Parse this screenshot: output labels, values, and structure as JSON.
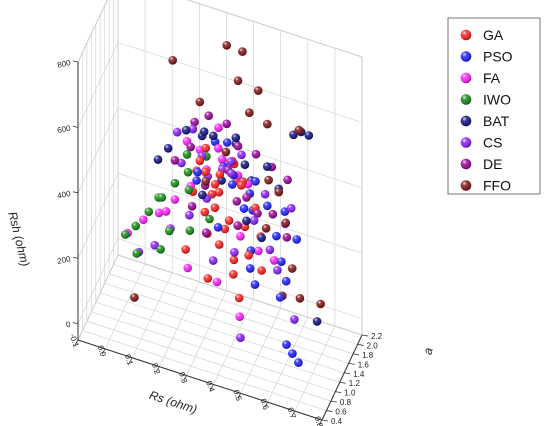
{
  "chart_data": {
    "type": "scatter",
    "projection": "3d",
    "xlabel": "Rs (ohm)",
    "ylabel": "a",
    "zlabel": "Rsh (ohm)",
    "xlim": [
      -0.1,
      0.8
    ],
    "ylim": [
      0.4,
      2.2
    ],
    "zlim": [
      -50,
      800
    ],
    "x_ticks": [
      "-0.1",
      "0.0",
      "0.1",
      "0.2",
      "0.3",
      "0.4",
      "0.5",
      "0.6",
      "0.7",
      "0.8"
    ],
    "y_ticks": [
      "0.4",
      "0.6",
      "0.8",
      "1.0",
      "1.2",
      "1.4",
      "1.6",
      "1.8",
      "2.0",
      "2.2"
    ],
    "z_ticks": [
      "0",
      "200",
      "400",
      "600",
      "800"
    ],
    "legend_position": "top-right",
    "series": [
      {
        "name": "GA",
        "color": "#ff1a1a",
        "points": [
          [
            0.3,
            1.0,
            520
          ],
          [
            0.28,
            1.1,
            470
          ],
          [
            0.34,
            1.2,
            430
          ],
          [
            0.36,
            0.95,
            400
          ],
          [
            0.32,
            1.3,
            380
          ],
          [
            0.4,
            1.1,
            350
          ],
          [
            0.38,
            0.9,
            300
          ],
          [
            0.42,
            1.4,
            420
          ],
          [
            0.3,
            1.25,
            450
          ],
          [
            0.45,
            1.2,
            330
          ],
          [
            0.26,
            0.85,
            260
          ],
          [
            0.48,
            1.0,
            280
          ],
          [
            0.33,
            1.5,
            360
          ],
          [
            0.37,
            1.05,
            490
          ],
          [
            0.44,
            0.8,
            240
          ],
          [
            0.29,
            1.35,
            310
          ],
          [
            0.5,
            1.3,
            300
          ],
          [
            0.41,
            1.6,
            400
          ],
          [
            0.35,
            0.75,
            210
          ],
          [
            0.39,
            1.45,
            470
          ],
          [
            0.31,
            1.15,
            540
          ],
          [
            0.43,
            0.95,
            260
          ],
          [
            0.27,
            1.05,
            410
          ],
          [
            0.46,
            1.55,
            340
          ],
          [
            0.36,
            1.4,
            270
          ],
          [
            0.52,
            1.1,
            230
          ],
          [
            0.34,
            0.85,
            330
          ],
          [
            0.4,
            1.25,
            510
          ],
          [
            0.47,
            0.7,
            190
          ],
          [
            0.38,
            1.7,
            380
          ]
        ]
      },
      {
        "name": "PSO",
        "color": "#1a1aff",
        "points": [
          [
            0.65,
            0.9,
            40
          ],
          [
            0.68,
            0.8,
            35
          ],
          [
            0.62,
            1.0,
            45
          ],
          [
            0.58,
            1.2,
            150
          ],
          [
            0.55,
            1.4,
            300
          ],
          [
            0.5,
            1.6,
            350
          ],
          [
            0.46,
            1.3,
            420
          ],
          [
            0.42,
            1.0,
            480
          ],
          [
            0.36,
            1.5,
            520
          ],
          [
            0.3,
            0.9,
            500
          ],
          [
            0.6,
            1.7,
            260
          ],
          [
            0.52,
            0.8,
            230
          ],
          [
            0.44,
            1.8,
            380
          ],
          [
            0.48,
            1.1,
            280
          ],
          [
            0.4,
            1.3,
            460
          ],
          [
            0.34,
            1.2,
            560
          ],
          [
            0.56,
            1.5,
            210
          ],
          [
            0.38,
            0.85,
            360
          ],
          [
            0.54,
            1.9,
            300
          ],
          [
            0.28,
            1.1,
            440
          ],
          [
            0.45,
            1.55,
            330
          ],
          [
            0.59,
            1.35,
            180
          ],
          [
            0.33,
            1.7,
            410
          ],
          [
            0.49,
            0.95,
            250
          ],
          [
            0.41,
            1.65,
            310
          ]
        ]
      },
      {
        "name": "FA",
        "color": "#ff1aff",
        "points": [
          [
            0.05,
            0.8,
            260
          ],
          [
            0.1,
            0.9,
            300
          ],
          [
            0.15,
            1.0,
            320
          ],
          [
            0.2,
            1.1,
            360
          ],
          [
            0.25,
            1.2,
            400
          ],
          [
            0.3,
            1.3,
            450
          ],
          [
            0.35,
            1.4,
            480
          ],
          [
            0.4,
            1.5,
            430
          ],
          [
            0.45,
            1.0,
            330
          ],
          [
            0.5,
            1.2,
            270
          ],
          [
            0.28,
            0.7,
            230
          ],
          [
            0.38,
            0.8,
            200
          ],
          [
            0.48,
            0.6,
            150
          ],
          [
            0.22,
            1.4,
            500
          ],
          [
            0.32,
            1.6,
            540
          ],
          [
            0.42,
            1.7,
            380
          ],
          [
            0.18,
            0.95,
            340
          ],
          [
            0.36,
            1.1,
            560
          ],
          [
            0.55,
            1.3,
            240
          ],
          [
            0.26,
            1.5,
            470
          ]
        ]
      },
      {
        "name": "IWO",
        "color": "#128a12",
        "points": [
          [
            0.05,
            0.7,
            270
          ],
          [
            0.08,
            0.8,
            290
          ],
          [
            0.12,
            0.9,
            330
          ],
          [
            0.16,
            1.0,
            370
          ],
          [
            0.2,
            1.1,
            410
          ],
          [
            0.24,
            1.2,
            440
          ],
          [
            0.28,
            0.8,
            330
          ],
          [
            0.1,
            0.6,
            240
          ],
          [
            0.18,
            0.7,
            260
          ],
          [
            0.22,
            1.4,
            460
          ],
          [
            0.3,
            1.3,
            490
          ],
          [
            0.26,
            1.0,
            420
          ],
          [
            0.14,
            1.1,
            350
          ],
          [
            0.34,
            0.95,
            360
          ],
          [
            0.2,
            0.85,
            300
          ]
        ]
      },
      {
        "name": "BAT",
        "color": "#0c0c80",
        "points": [
          [
            0.6,
            1.9,
            560
          ],
          [
            0.62,
            2.0,
            540
          ],
          [
            0.58,
            1.8,
            560
          ],
          [
            0.25,
            1.0,
            600
          ],
          [
            0.3,
            1.2,
            580
          ],
          [
            0.35,
            1.0,
            610
          ],
          [
            0.4,
            1.4,
            560
          ],
          [
            0.45,
            1.2,
            520
          ],
          [
            0.7,
            1.4,
            80
          ],
          [
            0.5,
            1.6,
            470
          ],
          [
            0.2,
            0.8,
            560
          ],
          [
            0.55,
            1.5,
            430
          ],
          [
            0.38,
            1.65,
            500
          ],
          [
            0.28,
            1.35,
            540
          ],
          [
            0.48,
            0.9,
            400
          ],
          [
            0.33,
            0.75,
            460
          ],
          [
            0.42,
            1.85,
            370
          ],
          [
            0.52,
            1.1,
            330
          ],
          [
            0.15,
            0.95,
            490
          ],
          [
            0.36,
            1.25,
            440
          ]
        ]
      },
      {
        "name": "CS",
        "color": "#8a1aff",
        "points": [
          [
            0.45,
            1.0,
            20
          ],
          [
            0.6,
            1.6,
            30
          ],
          [
            0.55,
            1.8,
            280
          ],
          [
            0.58,
            1.7,
            350
          ],
          [
            0.4,
            1.2,
            480
          ],
          [
            0.35,
            1.4,
            450
          ],
          [
            0.3,
            1.1,
            520
          ],
          [
            0.25,
            1.3,
            560
          ],
          [
            0.2,
            0.9,
            300
          ],
          [
            0.15,
            0.8,
            250
          ],
          [
            0.1,
            0.7,
            230
          ],
          [
            0.5,
            1.5,
            400
          ],
          [
            0.38,
            1.9,
            430
          ],
          [
            0.28,
            1.6,
            380
          ],
          [
            0.44,
            0.85,
            300
          ],
          [
            0.33,
            0.95,
            420
          ],
          [
            0.48,
            1.25,
            350
          ],
          [
            0.22,
            1.15,
            470
          ],
          [
            0.53,
            1.35,
            260
          ],
          [
            0.41,
            1.05,
            540
          ],
          [
            0.18,
            1.45,
            510
          ],
          [
            0.37,
            0.75,
            270
          ],
          [
            0.57,
            1.2,
            230
          ],
          [
            0.27,
            0.9,
            360
          ]
        ]
      },
      {
        "name": "DE",
        "color": "#990099",
        "points": [
          [
            0.3,
            1.4,
            600
          ],
          [
            0.35,
            1.6,
            560
          ],
          [
            0.4,
            1.5,
            520
          ],
          [
            0.45,
            1.7,
            480
          ],
          [
            0.5,
            1.8,
            440
          ],
          [
            0.55,
            1.9,
            400
          ],
          [
            0.25,
            1.2,
            520
          ],
          [
            0.2,
            1.1,
            480
          ],
          [
            0.32,
            1.0,
            450
          ],
          [
            0.42,
            1.2,
            400
          ],
          [
            0.48,
            1.4,
            350
          ],
          [
            0.38,
            1.3,
            470
          ],
          [
            0.28,
            0.9,
            390
          ],
          [
            0.52,
            1.6,
            330
          ],
          [
            0.44,
            1.0,
            360
          ],
          [
            0.36,
            1.75,
            420
          ],
          [
            0.24,
            1.5,
            550
          ],
          [
            0.58,
            1.5,
            290
          ],
          [
            0.34,
            0.8,
            340
          ],
          [
            0.46,
            1.15,
            430
          ]
        ]
      },
      {
        "name": "FFO",
        "color": "#801010",
        "points": [
          [
            0.35,
            1.6,
            800
          ],
          [
            0.4,
            1.7,
            780
          ],
          [
            0.2,
            1.0,
            800
          ],
          [
            0.4,
            1.5,
            720
          ],
          [
            0.3,
            1.0,
            700
          ],
          [
            0.45,
            1.8,
            660
          ],
          [
            0.5,
            1.6,
            600
          ],
          [
            0.45,
            1.4,
            650
          ],
          [
            0.6,
            1.8,
            580
          ],
          [
            0.55,
            1.5,
            420
          ],
          [
            0.48,
            1.9,
            380
          ],
          [
            0.6,
            1.5,
            200
          ],
          [
            0.62,
            1.6,
            100
          ],
          [
            0.68,
            1.8,
            70
          ],
          [
            0.1,
            0.5,
            120
          ],
          [
            0.58,
            1.3,
            140
          ],
          [
            0.38,
            1.2,
            540
          ],
          [
            0.52,
            1.3,
            330
          ],
          [
            0.33,
            0.9,
            480
          ],
          [
            0.56,
            1.7,
            300
          ]
        ]
      }
    ]
  }
}
